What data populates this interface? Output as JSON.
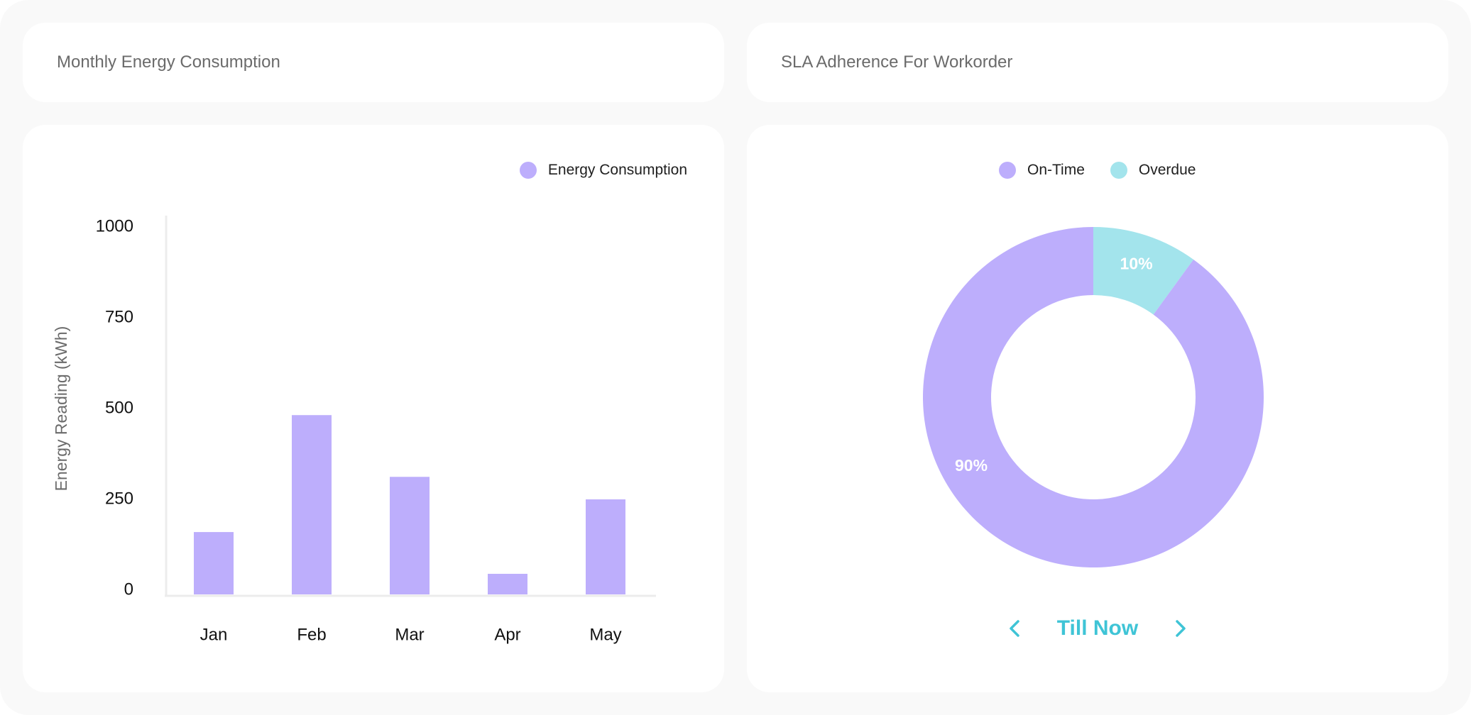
{
  "cards": {
    "energy": {
      "title": "Monthly Energy Consumption"
    },
    "sla": {
      "title": "SLA Adherence For Workorder",
      "period_label": "Till Now",
      "prev_icon": "chevron-left-icon",
      "next_icon": "chevron-right-icon"
    }
  },
  "colors": {
    "primary": "#bdaefc",
    "secondary": "#a3e4ec",
    "accent": "#3fc4d6"
  },
  "chart_data": [
    {
      "type": "bar",
      "title": "Monthly Energy Consumption",
      "categories": [
        "Jan",
        "Feb",
        "Mar",
        "Apr",
        "May"
      ],
      "series": [
        {
          "name": "Energy Consumption",
          "values": [
            160,
            482,
            312,
            45,
            250
          ]
        }
      ],
      "xlabel": "",
      "ylabel": "Energy Reading (kWh)",
      "ylim": [
        0,
        1000
      ],
      "yticks": [
        "1000",
        "750",
        "500",
        "250",
        "0"
      ],
      "grid": false,
      "legend": "top-right"
    },
    {
      "type": "pie",
      "title": "SLA Adherence For Workorder",
      "donut": true,
      "labels": [
        "On-Time",
        "Overdue"
      ],
      "values": [
        90,
        10
      ],
      "slice_labels": [
        "90%",
        "10%"
      ],
      "legend": "top"
    }
  ]
}
